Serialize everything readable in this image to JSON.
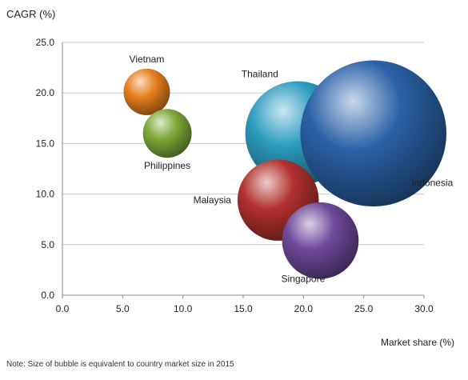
{
  "chart_data": {
    "type": "bubble",
    "title": "",
    "xlabel": "Market share (%)",
    "ylabel": "CAGR (%)",
    "xlim": [
      0,
      30
    ],
    "ylim": [
      0,
      25
    ],
    "xticks": [
      "0.0",
      "5.0",
      "10.0",
      "15.0",
      "20.0",
      "25.0",
      "30.0"
    ],
    "yticks": [
      "0.0",
      "5.0",
      "10.0",
      "15.0",
      "20.0",
      "25.0"
    ],
    "grid": "horizontal",
    "note": "Note: Size of bubble is equivalent to country market size in 2015",
    "series": [
      {
        "name": "Vietnam",
        "x": 7.0,
        "y": 20.1,
        "size": 1.0,
        "color": "#e8801f",
        "label_position": "top"
      },
      {
        "name": "Philippines",
        "x": 8.7,
        "y": 16.0,
        "size": 1.05,
        "color": "#7fa93a",
        "label_position": "bottom"
      },
      {
        "name": "Thailand",
        "x": 19.5,
        "y": 16.0,
        "size": 2.25,
        "color": "#2e9dc0",
        "label_position": "top-left"
      },
      {
        "name": "Indonesia",
        "x": 25.8,
        "y": 16.0,
        "size": 3.15,
        "color": "#2a62a8",
        "label_position": "bottom-right"
      },
      {
        "name": "Malaysia",
        "x": 17.9,
        "y": 9.4,
        "size": 1.75,
        "color": "#b2322f",
        "label_position": "left"
      },
      {
        "name": "Singapore",
        "x": 21.4,
        "y": 5.4,
        "size": 1.65,
        "color": "#6f4a9c",
        "label_position": "bottom-left"
      }
    ]
  }
}
